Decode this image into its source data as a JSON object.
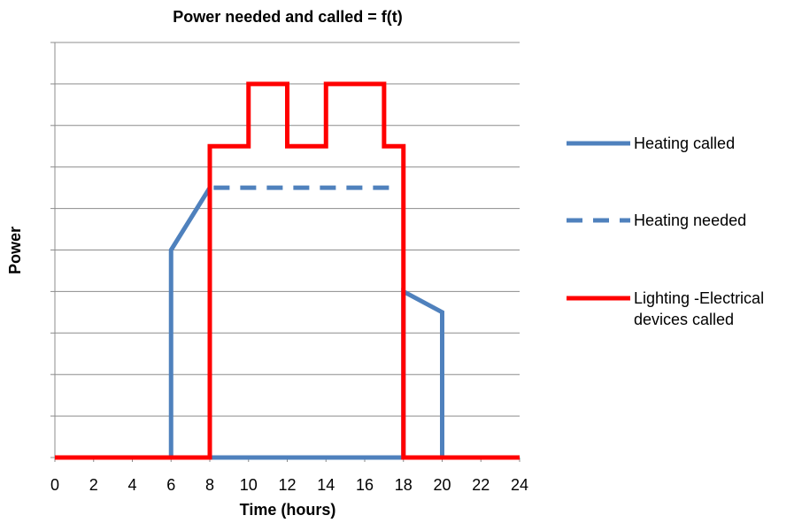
{
  "chart_data": {
    "type": "line",
    "title": "Power needed and called = f(t)",
    "x_label": "Time (hours)",
    "y_label": "Power",
    "xlim": [
      0,
      24
    ],
    "xticks": [
      0,
      2,
      4,
      6,
      8,
      10,
      12,
      14,
      16,
      18,
      20,
      22,
      24
    ],
    "ylim": [
      0,
      10
    ],
    "yticks": [
      0,
      1,
      2,
      3,
      4,
      5,
      6,
      7,
      8,
      9,
      10
    ],
    "grid": true,
    "legend": "right",
    "series": [
      {
        "name": "Heating called",
        "color": "#4f81bd",
        "dash": false,
        "x": [
          0,
          6,
          6,
          8,
          8,
          18,
          18,
          20,
          20,
          24
        ],
        "values": [
          0,
          0,
          5,
          6.5,
          0,
          0,
          4,
          3.5,
          0,
          0
        ]
      },
      {
        "name": "Heating needed",
        "color": "#4f81bd",
        "dash": true,
        "x": [
          8.2,
          17.6
        ],
        "values": [
          6.5,
          6.5
        ]
      },
      {
        "name": "Lighting -Electrical devices called",
        "color": "#ff0000",
        "dash": false,
        "x": [
          0,
          8,
          8,
          10,
          10,
          12,
          12,
          14,
          14,
          17,
          17,
          18,
          18,
          24
        ],
        "values": [
          0,
          0,
          7.5,
          7.5,
          9,
          9,
          7.5,
          7.5,
          9,
          9,
          7.5,
          7.5,
          0,
          0
        ]
      }
    ]
  }
}
